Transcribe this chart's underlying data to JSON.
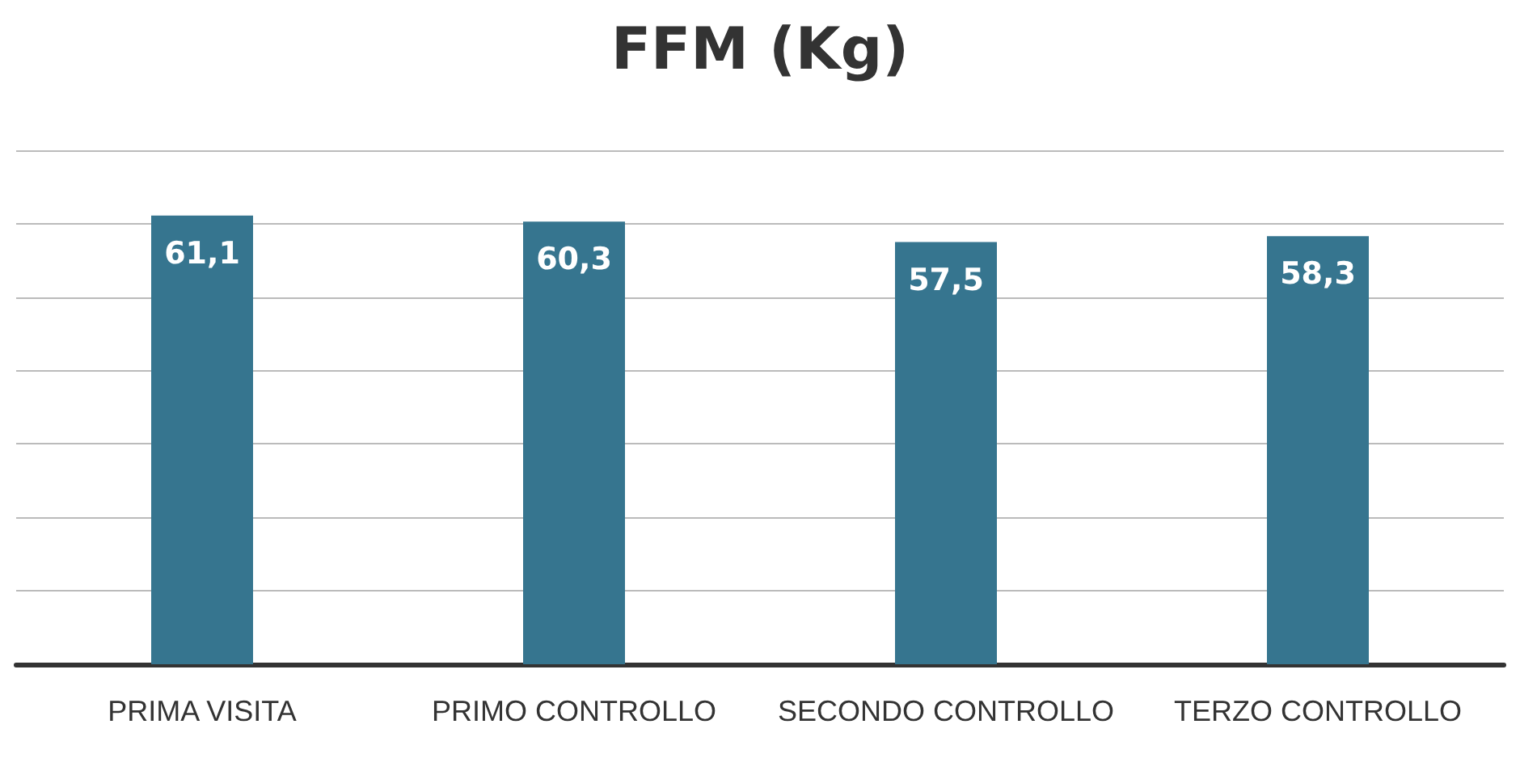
{
  "chart_data": {
    "type": "bar",
    "title": "FFM (Kg)",
    "categories": [
      "PRIMA VISITA",
      "PRIMO CONTROLLO",
      "SECONDO CONTROLLO",
      "TERZO CONTROLLO"
    ],
    "values": [
      61.1,
      60.3,
      57.5,
      58.3
    ],
    "value_labels": [
      "61,1",
      "60,3",
      "57,5",
      "58,3"
    ],
    "color": "#36758f",
    "grid": "y",
    "tick_labels": "x"
  }
}
